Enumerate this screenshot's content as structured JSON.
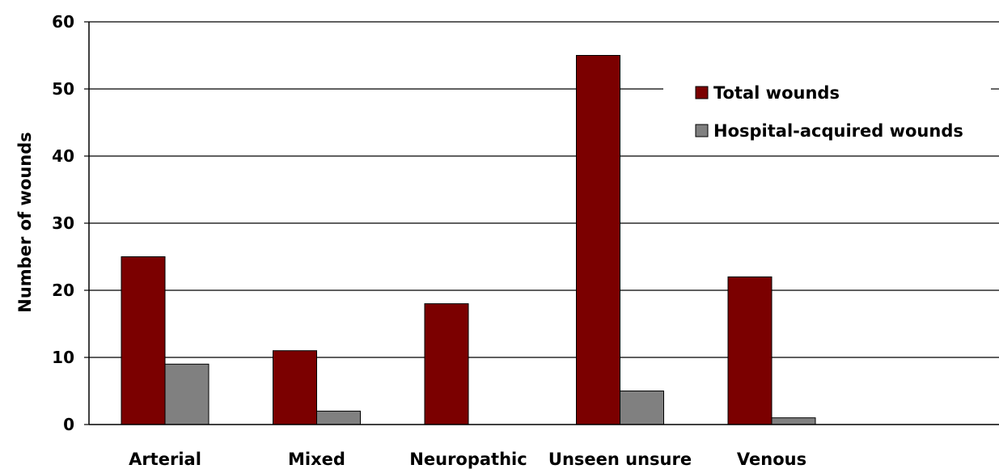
{
  "chart_data": {
    "type": "bar",
    "title": "",
    "xlabel": "",
    "ylabel": "Number of wounds",
    "ylim": [
      0,
      60
    ],
    "yticks": [
      0,
      10,
      20,
      30,
      40,
      50,
      60
    ],
    "grid": true,
    "legend_position": "top-right",
    "categories": [
      "Arterial",
      "Mixed",
      "Neuropathic",
      "Unseen unsure",
      "Venous"
    ],
    "series": [
      {
        "name": "Total wounds",
        "color": "#7b0000",
        "values": [
          25,
          11,
          18,
          55,
          22
        ]
      },
      {
        "name": "Hospital-acquired wounds",
        "color": "#808080",
        "values": [
          9,
          2,
          0,
          5,
          1
        ]
      }
    ]
  }
}
